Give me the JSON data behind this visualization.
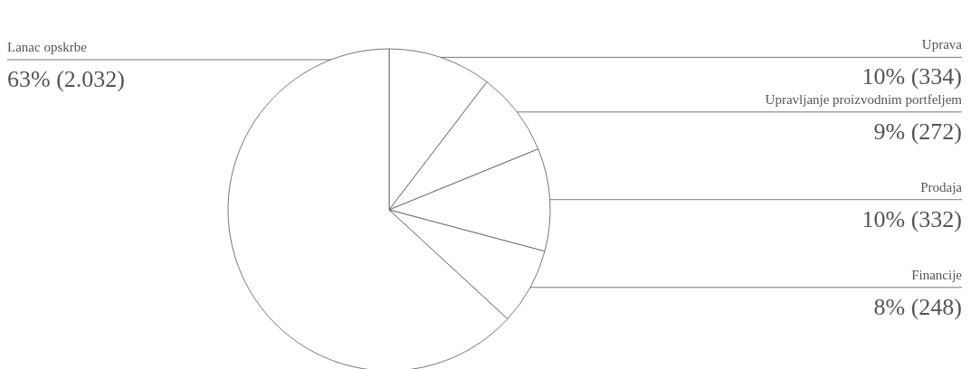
{
  "chart_data": {
    "type": "pie",
    "categories": [
      "Uprava",
      "Upravljanje proizvodnim portfeljem",
      "Prodaja",
      "Financije",
      "Lanac opskrbe"
    ],
    "values": [
      334,
      272,
      332,
      248,
      2032
    ],
    "colors": [
      "#ffffff",
      "#ffffff",
      "#ffffff",
      "#ffffff",
      "#ffffff"
    ],
    "value_labels": [
      "10% (334)",
      "9% (272)",
      "10% (332)",
      "8% (248)",
      "63% (2.032)"
    ]
  }
}
